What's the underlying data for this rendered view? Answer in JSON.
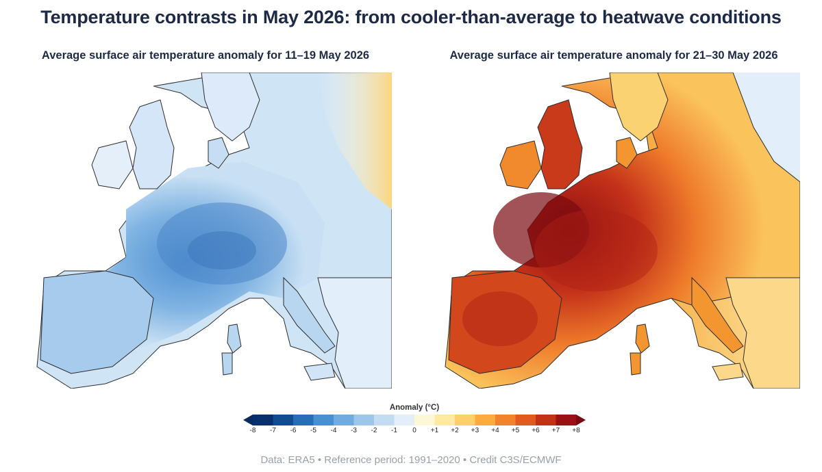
{
  "title": "Temperature contrasts in May 2026: from cooler-than-average to heatwave conditions",
  "panels": [
    {
      "subtitle": "Average surface air temperature anomaly for 11–19 May 2026",
      "theme": "cool"
    },
    {
      "subtitle": "Average surface air temperature anomaly for 21–30 May 2026",
      "theme": "warm"
    }
  ],
  "legend": {
    "title": "Anomaly (°C)",
    "ticks": [
      "-8",
      "-7",
      "-6",
      "-5",
      "-4",
      "-3",
      "-2",
      "-1",
      "0",
      "+1",
      "+2",
      "+3",
      "+4",
      "+5",
      "+6",
      "+7",
      "+8"
    ],
    "colors": [
      "#08306b",
      "#134b91",
      "#2a6cb6",
      "#4a8fd0",
      "#72acdf",
      "#9dc7ea",
      "#c3dcf2",
      "#e3eefa",
      "#fcf7d7",
      "#ffe9a3",
      "#fed06a",
      "#fbac3c",
      "#f4822a",
      "#e35a1f",
      "#c33119",
      "#9a1014"
    ],
    "min_color": "#082a5e",
    "max_color": "#7a0a10"
  },
  "credit": "Data: ERA5 • Reference period: 1991–2020 • Credit C3S/ECMWF"
}
